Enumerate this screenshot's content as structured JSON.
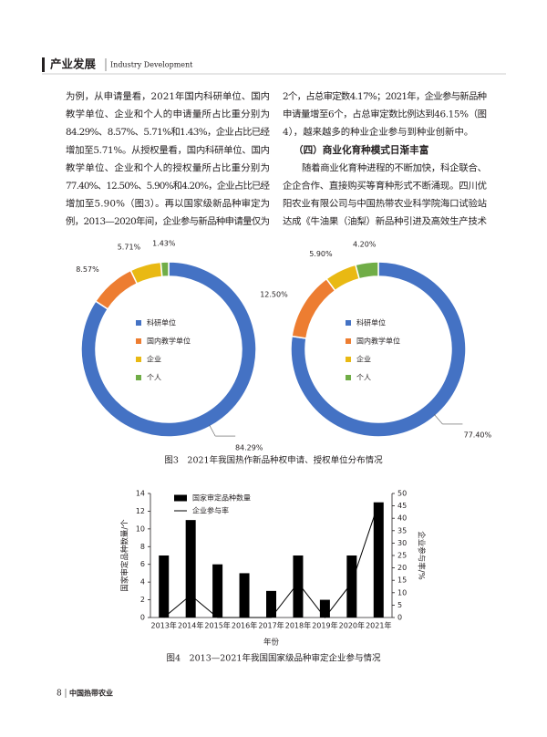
{
  "header": {
    "section": "产业发展",
    "section_en": "Industry Development"
  },
  "left_column": [
    "为例，从申请量看，2021年国内科研单位、国内",
    "教学单位、企业和个人的申请量所占比重分别为",
    "84.29%、8.57%、5.71%和1.43%，企业占比已经",
    "增加至5.71%。从授权量看，国内科研单位、国内",
    "教学单位、企业和个人的授权量所占比重分别为",
    "77.40%、12.50%、5.90%和4.20%，企业占比已经",
    "增加至5.90%（图3）。再以国家级新品种审定为",
    "例，2013—2020年间，企业参与新品种申请量仅为"
  ],
  "right_column": {
    "lines": [
      "2个，占总审定数4.17%；2021年，企业参与新品种",
      "申请量增至6个，占总审定数比例达到46.15%（图",
      "4），越来越多的种业企业参与到种业创新中。"
    ],
    "heading": "（四）商业化育种模式日渐丰富",
    "lines2": [
      "随着商业化育种进程的不断加快，科企联合、",
      "企企合作、直接购买等育种形式不断涌现。四川优",
      "阳农业有限公司与中国热带农业科学院海口试验站",
      "达成《牛油果（油梨）新品种引进及高效生产技术"
    ]
  },
  "captions": [
    "图3　2021年我国热作新品种权申请、授权单位分布情况",
    "图4　2013—2021年我国国家级品种审定企业参与情况"
  ],
  "chart_data": [
    {
      "type": "donut",
      "categories": [
        "科研单位",
        "国内教学单位",
        "企业",
        "个人"
      ],
      "values": [
        84.29,
        8.57,
        5.71,
        1.43
      ],
      "value_labels": [
        "84.29%",
        "8.57%",
        "5.71%",
        "1.43%"
      ],
      "colors": [
        "#4472c4",
        "#ed7d31",
        "#e9b913",
        "#70ad47"
      ]
    },
    {
      "type": "donut",
      "categories": [
        "科研单位",
        "国内教学单位",
        "企业",
        "个人"
      ],
      "values": [
        77.4,
        12.5,
        5.9,
        4.2
      ],
      "value_labels": [
        "77.40%",
        "12.50%",
        "5.90%",
        "4.20%"
      ],
      "colors": [
        "#4472c4",
        "#ed7d31",
        "#e9b913",
        "#70ad47"
      ]
    },
    {
      "type": "bar",
      "categories": [
        "2013年",
        "2014年",
        "2015年",
        "2016年",
        "2017年",
        "2018年",
        "2019年",
        "2020年",
        "2021年"
      ],
      "series": [
        {
          "name": "国家审定品种数量",
          "type": "bar",
          "color": "#000000",
          "values": [
            7,
            11,
            6,
            5,
            3,
            7,
            2,
            7,
            13
          ]
        },
        {
          "name": "企业参与率",
          "type": "line",
          "axis": "y2",
          "color": "#000000",
          "values": [
            0,
            9,
            0,
            0,
            0,
            14,
            0,
            14,
            46.15
          ]
        }
      ],
      "xlabel": "年份",
      "ylabel": "国家审定品种数量/个",
      "y2label": "企业参与率/%",
      "ylim": [
        0,
        14
      ],
      "yticks": [
        0,
        2,
        4,
        6,
        8,
        10,
        12,
        14
      ],
      "y2lim": [
        0,
        50
      ],
      "y2ticks": [
        0,
        5,
        10,
        15,
        20,
        25,
        30,
        35,
        40,
        45,
        50
      ]
    }
  ],
  "footer": {
    "page": "8",
    "journal": "中国热带农业"
  }
}
